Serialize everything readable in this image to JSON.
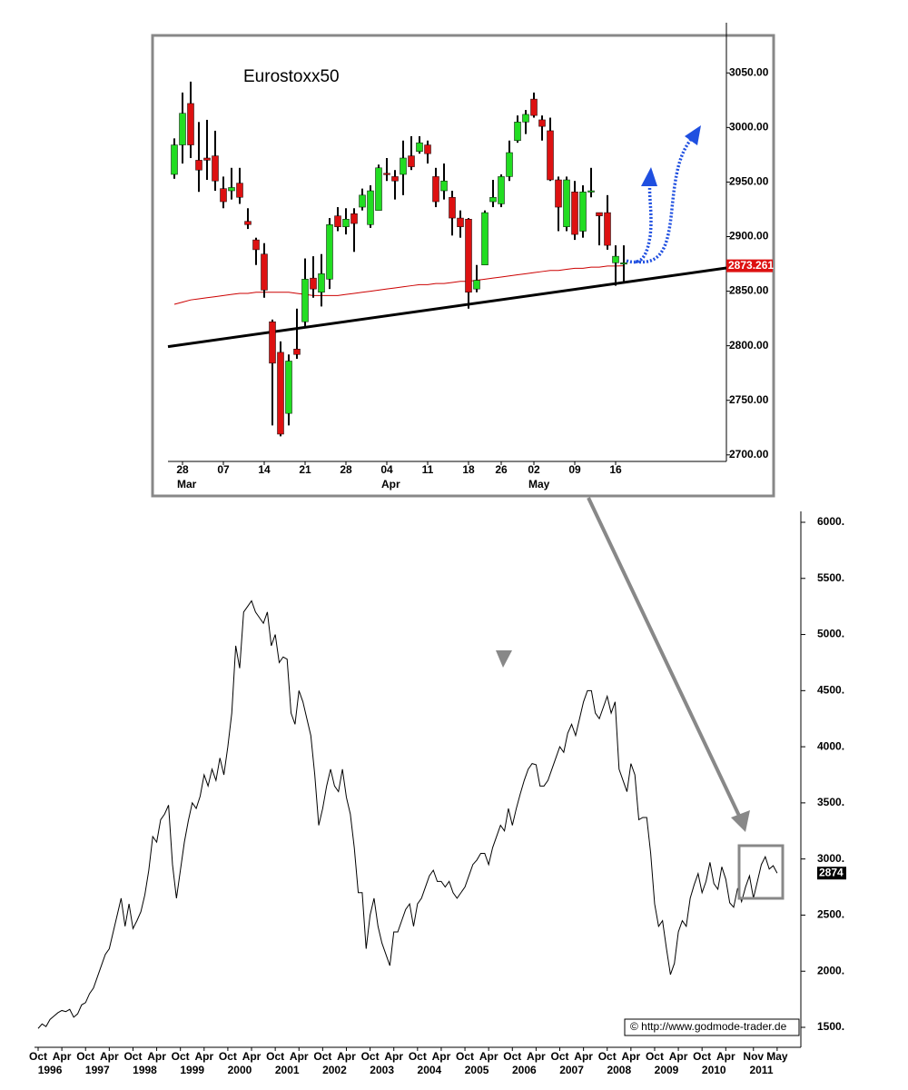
{
  "chart_data": [
    {
      "type": "candlestick",
      "title": "Eurostoxx50",
      "categories": [
        null,
        "28",
        null,
        null,
        null,
        null,
        "07",
        null,
        null,
        null,
        null,
        "14",
        null,
        null,
        null,
        null,
        "21",
        null,
        null,
        null,
        null,
        "28",
        null,
        null,
        null,
        null,
        "04",
        null,
        null,
        null,
        null,
        "11",
        null,
        null,
        null,
        null,
        "18",
        null,
        null,
        null,
        "26",
        null,
        null,
        null,
        "02",
        null,
        null,
        null,
        null,
        "09",
        null,
        null,
        null,
        null,
        "16",
        null
      ],
      "month_categories": [
        null,
        "Mar",
        null,
        null,
        null,
        null,
        null,
        null,
        null,
        null,
        null,
        null,
        null,
        null,
        null,
        null,
        null,
        null,
        null,
        null,
        null,
        null,
        null,
        null,
        null,
        null,
        "Apr",
        null,
        null,
        null,
        null,
        null,
        null,
        null,
        null,
        null,
        null,
        null,
        null,
        null,
        null,
        null,
        null,
        null,
        "May",
        null,
        null,
        null,
        null,
        null,
        null,
        null,
        null,
        null,
        null,
        null
      ],
      "open": [
        2957,
        2984,
        3022,
        2970,
        2972,
        2974,
        2944,
        2942,
        2949,
        2914,
        2897,
        2884,
        2822,
        2794,
        2738,
        2797,
        2822,
        2862,
        2849,
        2861,
        2919,
        2909,
        2921,
        2927,
        2911,
        2924,
        2958,
        2955,
        2957,
        2974,
        2978,
        2984,
        2955,
        2942,
        2936,
        2917,
        2916,
        2852,
        2874,
        2932,
        2930,
        2955,
        2988,
        3005,
        3026,
        3007,
        2997,
        2952,
        2909,
        2941,
        2905,
        2942,
        2922,
        2922,
        2876,
        2876
      ],
      "high": [
        2990,
        3032,
        3042,
        3005,
        3007,
        2997,
        2955,
        2963,
        2963,
        2926,
        2899,
        2894,
        2824,
        2804,
        2792,
        2834,
        2880,
        2882,
        2884,
        2917,
        2927,
        2926,
        2926,
        2944,
        2947,
        2966,
        2972,
        2961,
        2988,
        2992,
        2992,
        2988,
        2963,
        2967,
        2942,
        2924,
        2917,
        2874,
        2924,
        2952,
        2957,
        2988,
        3011,
        3016,
        3032,
        3011,
        3009,
        2955,
        2955,
        2951,
        2947,
        2963,
        2922,
        2938,
        2892,
        2892
      ],
      "low": [
        2953,
        2967,
        2972,
        2941,
        2952,
        2942,
        2926,
        2934,
        2930,
        2907,
        2874,
        2844,
        2727,
        2717,
        2727,
        2788,
        2817,
        2844,
        2836,
        2852,
        2905,
        2902,
        2886,
        2924,
        2908,
        2924,
        2951,
        2934,
        2938,
        2961,
        2976,
        2967,
        2927,
        2934,
        2901,
        2899,
        2834,
        2849,
        2874,
        2927,
        2927,
        2951,
        2986,
        2994,
        3009,
        2988,
        2951,
        2905,
        2905,
        2897,
        2899,
        2936,
        2892,
        2888,
        2855,
        2859
      ],
      "close": [
        2984,
        3013,
        2984,
        2961,
        2970,
        2951,
        2932,
        2945,
        2936,
        2911,
        2888,
        2851,
        2784,
        2719,
        2786,
        2792,
        2861,
        2852,
        2866,
        2911,
        2909,
        2916,
        2912,
        2938,
        2942,
        2963,
        2957,
        2951,
        2972,
        2964,
        2986,
        2976,
        2932,
        2951,
        2917,
        2909,
        2849,
        2860,
        2922,
        2936,
        2955,
        2977,
        3005,
        3012,
        3011,
        3001,
        2952,
        2927,
        2952,
        2902,
        2941,
        2942,
        2919,
        2892,
        2882,
        2876
      ],
      "up_color": "#22dd22",
      "down_color": "#dd1111",
      "ma_values": [
        2838,
        2840,
        2842,
        2843,
        2844,
        2845,
        2846,
        2847,
        2848,
        2848,
        2849,
        2849,
        2849,
        2849,
        2849,
        2848,
        2847,
        2846,
        2846,
        2846,
        2846,
        2847,
        2848,
        2849,
        2850,
        2851,
        2852,
        2853,
        2854,
        2855,
        2856,
        2856,
        2857,
        2857,
        2858,
        2859,
        2859,
        2860,
        2861,
        2862,
        2863,
        2864,
        2865,
        2866,
        2867,
        2868,
        2869,
        2869,
        2870,
        2871,
        2871,
        2872,
        2872,
        2873,
        2873,
        2873.261
      ],
      "ma_color": "#cc0000",
      "ma_last_label": "2873.261",
      "trendline": [
        2800,
        2858
      ],
      "trendline_color": "#000000",
      "ylim": [
        2694,
        3096
      ],
      "yticks": [
        {
          "value": 2700,
          "label": "2700.00"
        },
        {
          "value": 2750,
          "label": "2750.00"
        },
        {
          "value": 2800,
          "label": "2800.00"
        },
        {
          "value": 2850,
          "label": "2850.00"
        },
        {
          "value": 2900,
          "label": "2900.00"
        },
        {
          "value": 2950,
          "label": "2950.00"
        },
        {
          "value": 3000,
          "label": "3000.00"
        },
        {
          "value": 3050,
          "label": "3050.00"
        }
      ]
    },
    {
      "type": "line",
      "x": [
        "1995-10",
        "1995-11",
        "1995-12",
        "1996-01",
        "1996-02",
        "1996-03",
        "1996-04",
        "1996-05",
        "1996-06",
        "1996-07",
        "1996-08",
        "1996-09",
        "1996-10",
        "1996-11",
        "1996-12",
        "1997-01",
        "1997-02",
        "1997-03",
        "1997-04",
        "1997-05",
        "1997-06",
        "1997-07",
        "1997-08",
        "1997-09",
        "1997-10",
        "1997-11",
        "1997-12",
        "1998-01",
        "1998-02",
        "1998-03",
        "1998-04",
        "1998-05",
        "1998-06",
        "1998-07",
        "1998-08",
        "1998-09",
        "1998-10",
        "1998-11",
        "1998-12",
        "1999-01",
        "1999-02",
        "1999-03",
        "1999-04",
        "1999-05",
        "1999-06",
        "1999-07",
        "1999-08",
        "1999-09",
        "1999-10",
        "1999-11",
        "1999-12",
        "2000-01",
        "2000-02",
        "2000-03",
        "2000-04",
        "2000-05",
        "2000-06",
        "2000-07",
        "2000-08",
        "2000-09",
        "2000-10",
        "2000-11",
        "2000-12",
        "2001-01",
        "2001-02",
        "2001-03",
        "2001-04",
        "2001-05",
        "2001-06",
        "2001-07",
        "2001-08",
        "2001-09",
        "2001-10",
        "2001-11",
        "2001-12",
        "2002-01",
        "2002-02",
        "2002-03",
        "2002-04",
        "2002-05",
        "2002-06",
        "2002-07",
        "2002-08",
        "2002-09",
        "2002-10",
        "2002-11",
        "2002-12",
        "2003-01",
        "2003-02",
        "2003-03",
        "2003-04",
        "2003-05",
        "2003-06",
        "2003-07",
        "2003-08",
        "2003-09",
        "2003-10",
        "2003-11",
        "2003-12",
        "2004-01",
        "2004-02",
        "2004-03",
        "2004-04",
        "2004-05",
        "2004-06",
        "2004-07",
        "2004-08",
        "2004-09",
        "2004-10",
        "2004-11",
        "2004-12",
        "2005-01",
        "2005-02",
        "2005-03",
        "2005-04",
        "2005-05",
        "2005-06",
        "2005-07",
        "2005-08",
        "2005-09",
        "2005-10",
        "2005-11",
        "2005-12",
        "2006-01",
        "2006-02",
        "2006-03",
        "2006-04",
        "2006-05",
        "2006-06",
        "2006-07",
        "2006-08",
        "2006-09",
        "2006-10",
        "2006-11",
        "2006-12",
        "2007-01",
        "2007-02",
        "2007-03",
        "2007-04",
        "2007-05",
        "2007-06",
        "2007-07",
        "2007-08",
        "2007-09",
        "2007-10",
        "2007-11",
        "2007-12",
        "2008-01",
        "2008-02",
        "2008-03",
        "2008-04",
        "2008-05",
        "2008-06",
        "2008-07",
        "2008-08",
        "2008-09",
        "2008-10",
        "2008-11",
        "2008-12",
        "2009-01",
        "2009-02",
        "2009-03",
        "2009-04",
        "2009-05",
        "2009-06",
        "2009-07",
        "2009-08",
        "2009-09",
        "2009-10",
        "2009-11",
        "2009-12",
        "2010-01",
        "2010-02",
        "2010-03",
        "2010-04",
        "2010-05",
        "2010-06",
        "2010-07",
        "2010-08",
        "2010-09",
        "2010-10",
        "2010-11",
        "2010-12",
        "2011-01",
        "2011-02",
        "2011-03",
        "2011-04",
        "2011-05"
      ],
      "values": [
        1490,
        1530,
        1507,
        1570,
        1600,
        1630,
        1650,
        1640,
        1660,
        1590,
        1620,
        1700,
        1720,
        1800,
        1850,
        1950,
        2050,
        2150,
        2200,
        2350,
        2500,
        2650,
        2400,
        2600,
        2380,
        2450,
        2530,
        2680,
        2900,
        3200,
        3150,
        3350,
        3400,
        3480,
        2950,
        2650,
        2900,
        3150,
        3340,
        3500,
        3450,
        3560,
        3750,
        3650,
        3800,
        3700,
        3900,
        3750,
        4000,
        4300,
        4900,
        4700,
        5200,
        5250,
        5300,
        5200,
        5150,
        5100,
        5200,
        4900,
        5000,
        4750,
        4800,
        4780,
        4300,
        4200,
        4500,
        4400,
        4250,
        4100,
        3750,
        3300,
        3450,
        3650,
        3800,
        3650,
        3600,
        3800,
        3550,
        3400,
        3100,
        2700,
        2700,
        2200,
        2500,
        2650,
        2400,
        2250,
        2150,
        2050,
        2350,
        2350,
        2450,
        2550,
        2600,
        2400,
        2600,
        2650,
        2750,
        2850,
        2900,
        2800,
        2800,
        2750,
        2800,
        2700,
        2650,
        2700,
        2750,
        2850,
        2950,
        2990,
        3050,
        3050,
        2950,
        3100,
        3200,
        3300,
        3250,
        3450,
        3300,
        3450,
        3580,
        3700,
        3800,
        3850,
        3840,
        3650,
        3650,
        3700,
        3800,
        3900,
        4000,
        3950,
        4120,
        4200,
        4100,
        4250,
        4400,
        4500,
        4500,
        4300,
        4250,
        4350,
        4450,
        4300,
        4400,
        3800,
        3700,
        3600,
        3850,
        3750,
        3350,
        3370,
        3370,
        3050,
        2600,
        2400,
        2450,
        2200,
        1970,
        2070,
        2350,
        2450,
        2400,
        2650,
        2770,
        2870,
        2700,
        2800,
        2970,
        2780,
        2730,
        2930,
        2820,
        2610,
        2570,
        2740,
        2620,
        2750,
        2850,
        2650,
        2800,
        2950,
        3020,
        2910,
        2940,
        2874
      ],
      "color": "#000000",
      "last_value_label": "2874",
      "xlim": [
        "1995-10",
        "2011-11"
      ],
      "xticks": [
        {
          "value": "1995-10",
          "label": "Oct"
        },
        {
          "value": "1996-04",
          "label": "Apr"
        },
        {
          "value": "1996-10",
          "label": "Oct"
        },
        {
          "value": "1997-04",
          "label": "Apr"
        },
        {
          "value": "1997-10",
          "label": "Oct"
        },
        {
          "value": "1998-04",
          "label": "Apr"
        },
        {
          "value": "1998-10",
          "label": "Oct"
        },
        {
          "value": "1999-04",
          "label": "Apr"
        },
        {
          "value": "1999-10",
          "label": "Oct"
        },
        {
          "value": "2000-04",
          "label": "Apr"
        },
        {
          "value": "2000-10",
          "label": "Oct"
        },
        {
          "value": "2001-04",
          "label": "Apr"
        },
        {
          "value": "2001-10",
          "label": "Oct"
        },
        {
          "value": "2002-04",
          "label": "Apr"
        },
        {
          "value": "2002-10",
          "label": "Oct"
        },
        {
          "value": "2003-04",
          "label": "Apr"
        },
        {
          "value": "2003-10",
          "label": "Oct"
        },
        {
          "value": "2004-04",
          "label": "Apr"
        },
        {
          "value": "2004-10",
          "label": "Oct"
        },
        {
          "value": "2005-04",
          "label": "Apr"
        },
        {
          "value": "2005-10",
          "label": "Oct"
        },
        {
          "value": "2006-04",
          "label": "Apr"
        },
        {
          "value": "2006-10",
          "label": "Oct"
        },
        {
          "value": "2007-04",
          "label": "Apr"
        },
        {
          "value": "2007-10",
          "label": "Oct"
        },
        {
          "value": "2008-04",
          "label": "Apr"
        },
        {
          "value": "2008-10",
          "label": "Oct"
        },
        {
          "value": "2009-04",
          "label": "Apr"
        },
        {
          "value": "2009-10",
          "label": "Oct"
        },
        {
          "value": "2010-04",
          "label": "Apr"
        },
        {
          "value": "2010-11",
          "label": "Nov"
        },
        {
          "value": "2011-05",
          "label": "May"
        }
      ],
      "xticks_years": [
        {
          "value": "1996-01",
          "label": "1996"
        },
        {
          "value": "1997-01",
          "label": "1997"
        },
        {
          "value": "1998-01",
          "label": "1998"
        },
        {
          "value": "1999-01",
          "label": "1999"
        },
        {
          "value": "2000-01",
          "label": "2000"
        },
        {
          "value": "2001-01",
          "label": "2001"
        },
        {
          "value": "2002-01",
          "label": "2002"
        },
        {
          "value": "2003-01",
          "label": "2003"
        },
        {
          "value": "2004-01",
          "label": "2004"
        },
        {
          "value": "2005-01",
          "label": "2005"
        },
        {
          "value": "2006-01",
          "label": "2006"
        },
        {
          "value": "2007-01",
          "label": "2007"
        },
        {
          "value": "2008-01",
          "label": "2008"
        },
        {
          "value": "2009-01",
          "label": "2009"
        },
        {
          "value": "2010-01",
          "label": "2010"
        },
        {
          "value": "2011-01",
          "label": "2011"
        }
      ],
      "ylim": [
        1322,
        6097
      ],
      "yticks": [
        {
          "value": 1500,
          "label": "1500."
        },
        {
          "value": 2000,
          "label": "2000."
        },
        {
          "value": 2500,
          "label": "2500."
        },
        {
          "value": 3000,
          "label": "3000."
        },
        {
          "value": 3500,
          "label": "3500."
        },
        {
          "value": 4000,
          "label": "4000."
        },
        {
          "value": 4500,
          "label": "4500."
        },
        {
          "value": 5000,
          "label": "5000."
        },
        {
          "value": 5500,
          "label": "5500."
        },
        {
          "value": 6000,
          "label": "6000."
        }
      ]
    }
  ],
  "copyright": "© http://www.godmode-trader.de"
}
